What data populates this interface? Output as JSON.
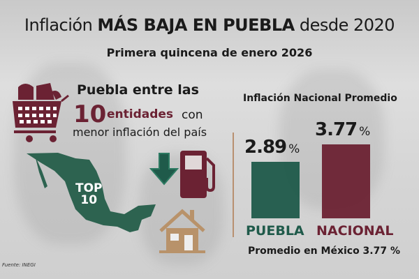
{
  "header": {
    "title_prefix": "Inflación",
    "title_bold": "MÁS BAJA EN PUEBLA",
    "title_suffix": "desde 2020",
    "subtitle": "Primera quincena de enero 2026"
  },
  "left": {
    "line1": "Puebla entre las",
    "number": "10",
    "entidades": "entidades",
    "con": "con",
    "line3": "menor inflación del país",
    "map_badge_line1": "TOP",
    "map_badge_line2": "10"
  },
  "icons": [
    "shopping-cart-icon",
    "mexico-map-icon",
    "down-arrow-icon",
    "gas-pump-icon",
    "house-icon"
  ],
  "colors": {
    "green": "#1f5a4a",
    "maroon": "#6b2233",
    "tan": "#b8926a"
  },
  "chart_data": {
    "type": "bar",
    "title": "Inflación Nacional Promedio",
    "categories": [
      "PUEBLA",
      "NACIONAL"
    ],
    "values": [
      2.89,
      3.77
    ],
    "value_labels": [
      "2.89",
      "3.77"
    ],
    "unit": "%",
    "colors": [
      "#1f5a4a",
      "#6b2233"
    ],
    "ylim": [
      0,
      3.77
    ],
    "xlabel": "",
    "ylabel": ""
  },
  "note": "Promedio en México 3.77 %",
  "source": "Fuente: INEGI"
}
